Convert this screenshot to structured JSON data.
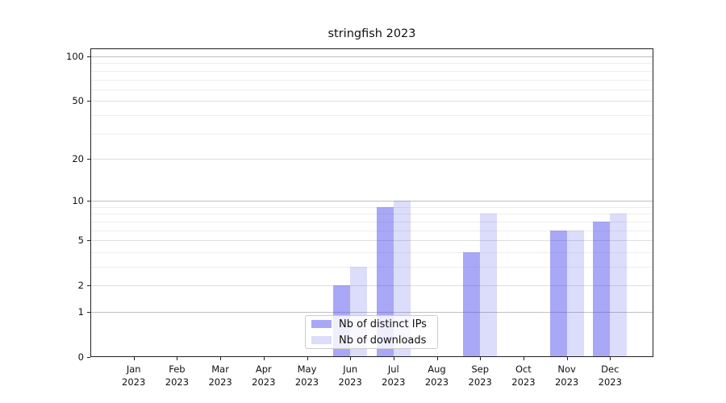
{
  "chart_data": {
    "type": "bar",
    "title": "stringfish 2023",
    "categories": [
      "Jan 2023",
      "Feb 2023",
      "Mar 2023",
      "Apr 2023",
      "May 2023",
      "Jun 2023",
      "Jul 2023",
      "Aug 2023",
      "Sep 2023",
      "Oct 2023",
      "Nov 2023",
      "Dec 2023"
    ],
    "month_line1": [
      "Jan",
      "Feb",
      "Mar",
      "Apr",
      "May",
      "Jun",
      "Jul",
      "Aug",
      "Sep",
      "Oct",
      "Nov",
      "Dec"
    ],
    "month_line2": "2023",
    "series": [
      {
        "name": "Nb of distinct IPs",
        "key": "distinct-ips",
        "color": "rgba(70,70,235,0.47)",
        "values": [
          0,
          0,
          0,
          0,
          0,
          2,
          9,
          0,
          4,
          0,
          6,
          7
        ]
      },
      {
        "name": "Nb of downloads",
        "key": "downloads",
        "color": "rgba(70,70,235,0.19)",
        "values": [
          0,
          0,
          0,
          0,
          0,
          3,
          10,
          0,
          8,
          0,
          6,
          8
        ]
      }
    ],
    "xlabel": "",
    "ylabel": "",
    "yscale": "log1p",
    "ylim": [
      0,
      100
    ],
    "yticks": [
      0,
      1,
      2,
      5,
      10,
      20,
      50,
      100
    ],
    "grid": {
      "major": [
        1,
        10,
        100
      ],
      "mid": [
        2,
        5,
        20,
        50
      ],
      "minor": [
        3,
        4,
        6,
        7,
        8,
        9,
        30,
        40,
        60,
        70,
        80,
        90
      ]
    },
    "grid_colors": {
      "major": "#c0c0c0",
      "mid": "#dedede",
      "minor": "#ededed"
    },
    "legend": {
      "entries": [
        "Nb of distinct IPs",
        "Nb of downloads"
      ],
      "location": "lower center"
    },
    "axis_color": "#222222"
  }
}
